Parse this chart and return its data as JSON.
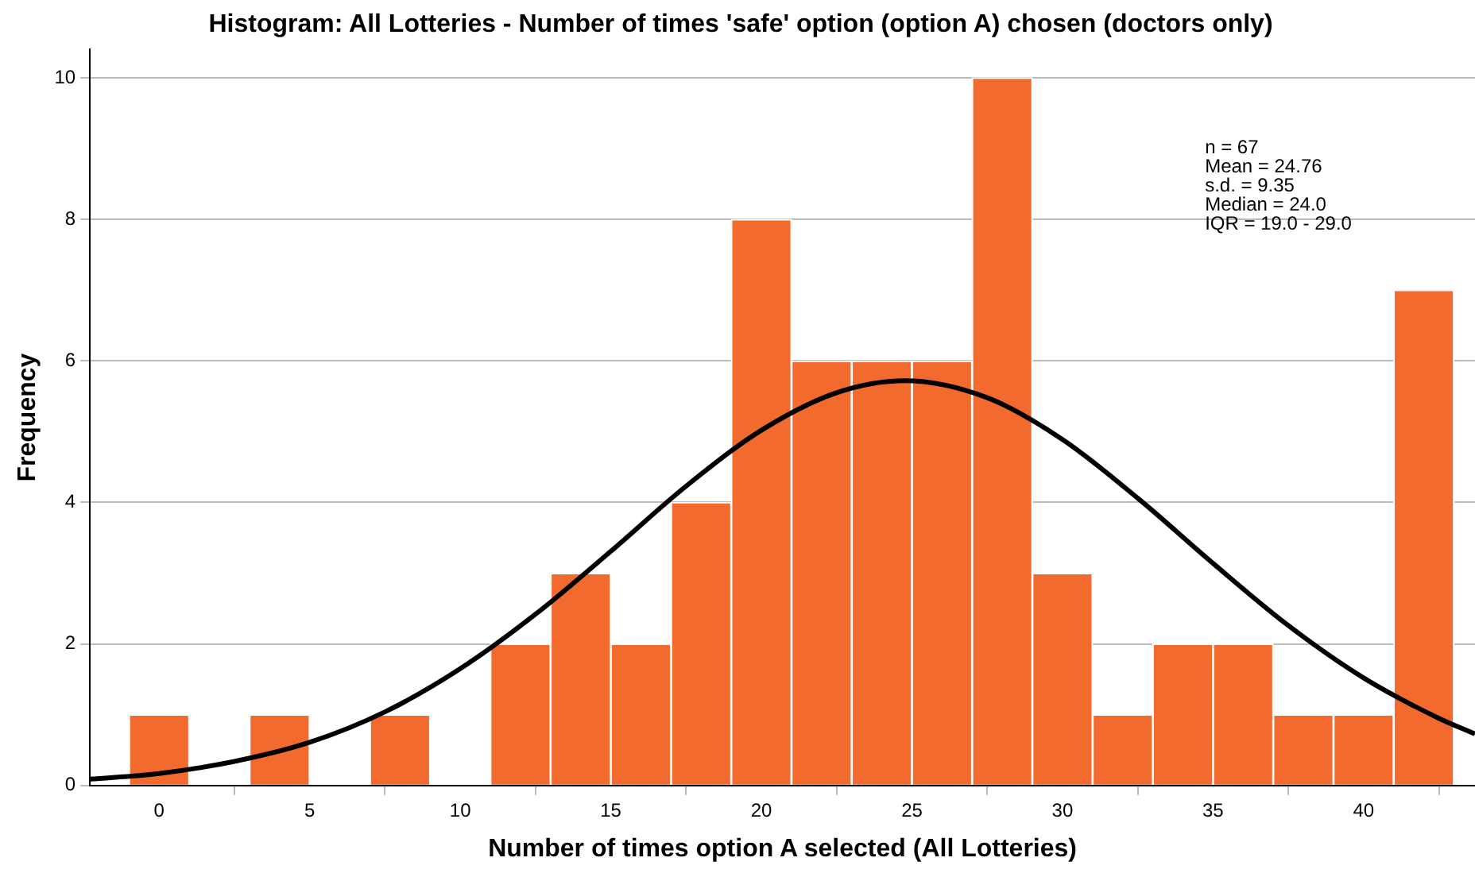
{
  "chart_data": {
    "type": "histogram",
    "title": "Histogram: All Lotteries - Number of times 'safe' option (option A) chosen (doctors only)",
    "xlabel": "Number of times option A selected (All Lotteries)",
    "ylabel": "Frequency",
    "bins": [
      -1,
      1,
      3,
      5,
      7,
      9,
      11,
      13,
      15,
      17,
      19,
      21,
      23,
      25,
      27,
      29,
      31,
      33,
      35,
      37,
      39,
      41,
      43
    ],
    "values": [
      1,
      0,
      1,
      0,
      1,
      0,
      2,
      3,
      2,
      4,
      8,
      6,
      6,
      6,
      10,
      3,
      1,
      2,
      2,
      1,
      1,
      7
    ],
    "color": "#f26a2e",
    "series": [
      {
        "type": "line",
        "color": "#000000",
        "x": [
          -2.3,
          0,
          2.5,
          5,
          7.5,
          10,
          12.5,
          15,
          17.5,
          20,
          22.5,
          24.76,
          27.5,
          30,
          32.5,
          35,
          37.5,
          40,
          42.5,
          43.7
        ],
        "values": [
          0.09,
          0.17,
          0.34,
          0.61,
          1.04,
          1.65,
          2.42,
          3.31,
          4.23,
          5.02,
          5.55,
          5.72,
          5.48,
          4.89,
          4.06,
          3.14,
          2.26,
          1.52,
          0.95,
          0.73
        ]
      }
    ],
    "xlim": [
      -2.3,
      43.7
    ],
    "xticks": [
      0,
      5,
      10,
      15,
      20,
      25,
      30,
      35,
      40
    ],
    "ylim": [
      0,
      10.4
    ],
    "yticks": [
      0,
      2,
      4,
      6,
      8,
      10
    ],
    "grid": "y",
    "legend": false,
    "annotations": [
      "n = 67",
      "Mean = 24.76",
      "s.d. = 9.35",
      "Median = 24.0",
      "IQR = 19.0 - 29.0"
    ]
  }
}
